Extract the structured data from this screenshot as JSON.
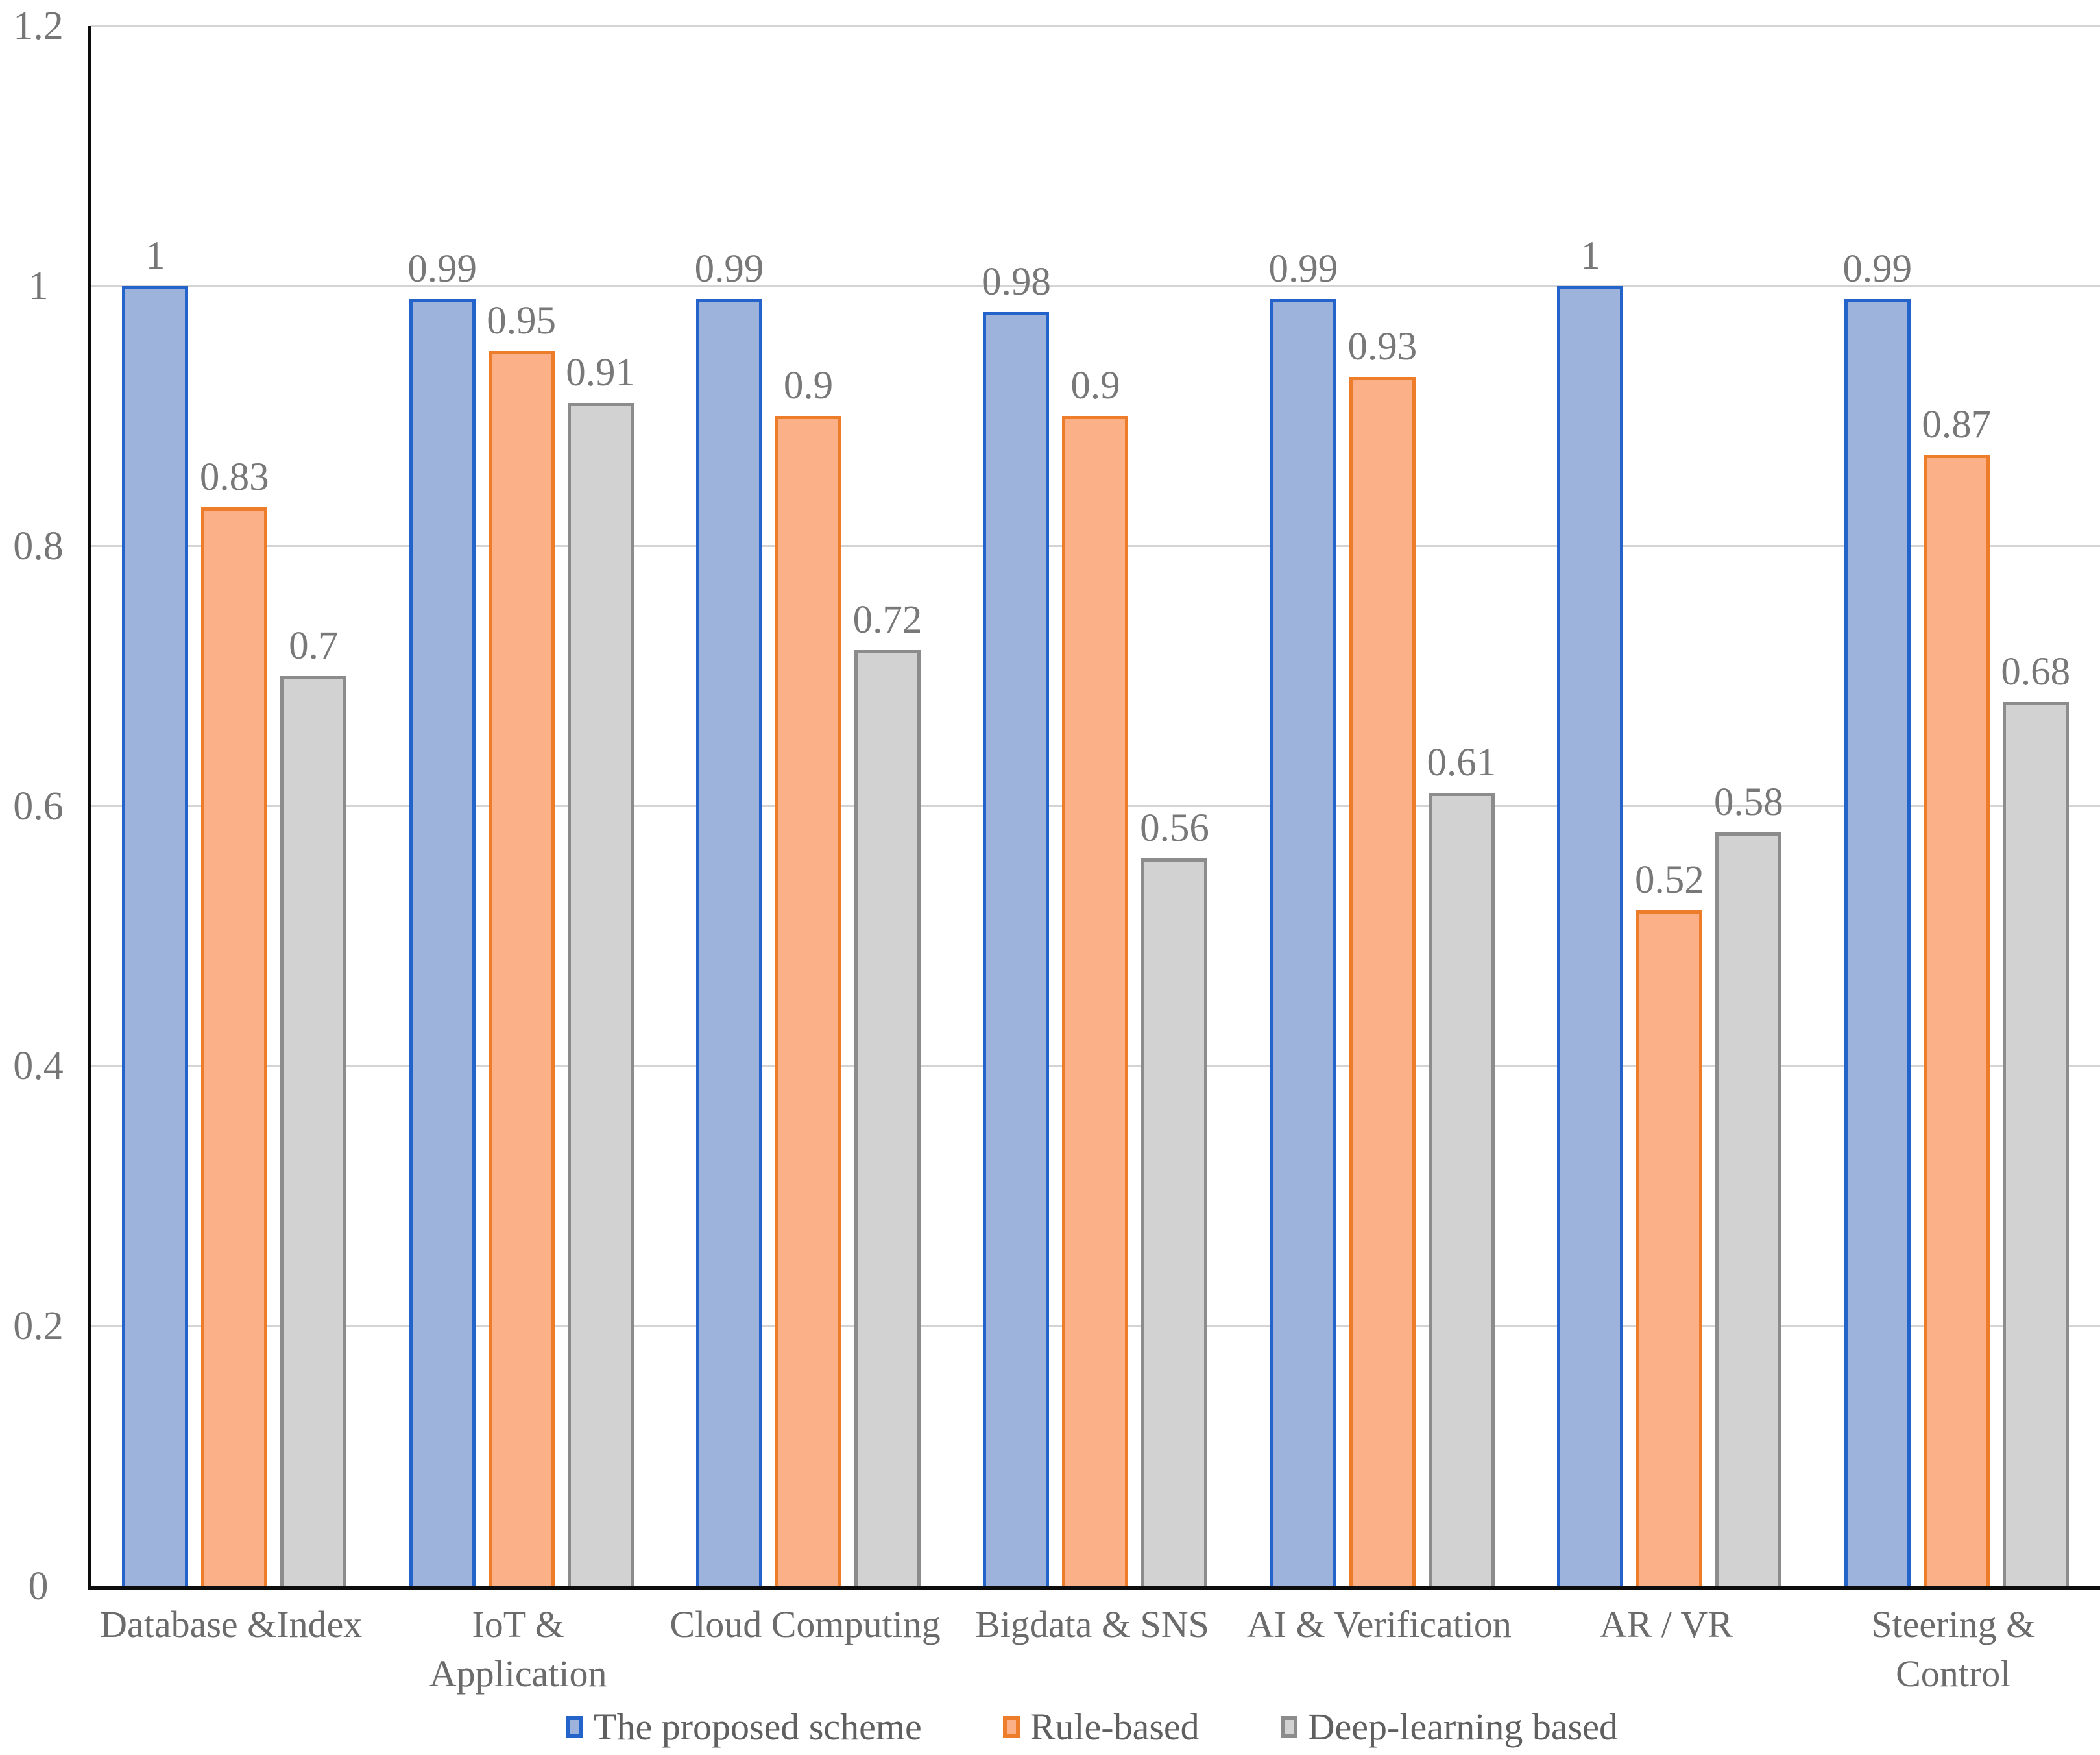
{
  "chart_data": {
    "type": "bar",
    "title": "",
    "xlabel": "",
    "ylabel": "",
    "ylim": [
      0,
      1.2
    ],
    "grid": true,
    "gridline_color": "#d4d4d4",
    "axis_color": "#0d0d0d",
    "label_color": "#787878",
    "legend_position": "bottom",
    "y_ticks": [
      {
        "value": 0,
        "label": "0"
      },
      {
        "value": 0.2,
        "label": "0.2"
      },
      {
        "value": 0.4,
        "label": "0.4"
      },
      {
        "value": 0.6,
        "label": "0.6"
      },
      {
        "value": 0.8,
        "label": "0.8"
      },
      {
        "value": 1,
        "label": "1"
      },
      {
        "value": 1.2,
        "label": "1.2"
      }
    ],
    "categories": [
      {
        "name": "Database &Index",
        "lines": [
          "Database &Index"
        ]
      },
      {
        "name": "IoT & Application",
        "lines": [
          "IoT &",
          "Application"
        ]
      },
      {
        "name": "Cloud Computing",
        "lines": [
          "Cloud Computing"
        ]
      },
      {
        "name": "Bigdata & SNS",
        "lines": [
          "Bigdata & SNS"
        ]
      },
      {
        "name": "AI & Verification",
        "lines": [
          "AI & Verification"
        ]
      },
      {
        "name": "AR / VR",
        "lines": [
          "AR / VR"
        ]
      },
      {
        "name": "Steering & Control",
        "lines": [
          "Steering &",
          "Control"
        ]
      }
    ],
    "series": [
      {
        "name": "The proposed scheme",
        "fill": "#9db3dc",
        "border": "#2463c9",
        "values": [
          1,
          0.99,
          0.99,
          0.98,
          0.99,
          1,
          0.99
        ],
        "labels": [
          "1",
          "0.99",
          "0.99",
          "0.98",
          "0.99",
          "1",
          "0.99"
        ]
      },
      {
        "name": "Rule-based",
        "fill": "#fbb088",
        "border": "#ed7d2b",
        "values": [
          0.83,
          0.95,
          0.9,
          0.9,
          0.93,
          0.52,
          0.87
        ],
        "labels": [
          "0.83",
          "0.95",
          "0.9",
          "0.9",
          "0.93",
          "0.52",
          "0.87"
        ]
      },
      {
        "name": "Deep-learning based",
        "fill": "#d2d2d2",
        "border": "#8c8c8c",
        "values": [
          0.7,
          0.91,
          0.72,
          0.56,
          0.61,
          0.58,
          0.68
        ],
        "labels": [
          "0.7",
          "0.91",
          "0.72",
          "0.56",
          "0.61",
          "0.58",
          "0.68"
        ]
      }
    ]
  }
}
